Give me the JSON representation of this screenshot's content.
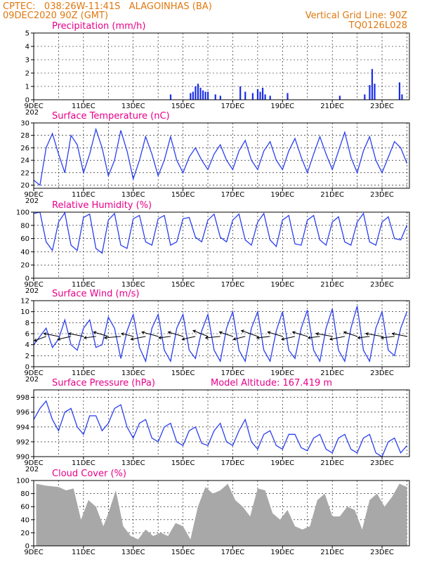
{
  "header": {
    "line1_left": "CPTEC:   038:26W-11:41S   ALAGOINHAS (BA)",
    "line2_left": "09DEC2020 90Z (GMT)",
    "line1_right": "Vertical Grid Line: 90Z",
    "line2_right": "TQ0126L028"
  },
  "x_axis": {
    "start_day": 9,
    "end_day": 24.1,
    "tick_labels": [
      "9DEC",
      "11DEC",
      "13DEC",
      "15DEC",
      "17DEC",
      "19DEC",
      "21DEC",
      "23DEC"
    ],
    "tick_days": [
      9,
      11,
      13,
      15,
      17,
      19,
      21,
      23
    ],
    "clipped_year_label": "202"
  },
  "colors": {
    "line": "#2a3ff0",
    "bar": "#1a2ee8",
    "cloud": "#a8a8a8",
    "header": "#e07810",
    "title": "#e8008a"
  },
  "chart_data": [
    {
      "id": "precip",
      "type": "bar",
      "title": "Precipitation (mm/h)",
      "ylim": [
        0,
        5
      ],
      "yticks": [
        0,
        1,
        2,
        3,
        4,
        5
      ],
      "x": [
        14.5,
        15.3,
        15.4,
        15.5,
        15.6,
        15.7,
        15.8,
        15.9,
        16.0,
        16.3,
        16.5,
        17.3,
        17.5,
        17.8,
        18.0,
        18.1,
        18.2,
        18.3,
        18.5,
        19.2,
        21.3,
        22.3,
        22.5,
        22.6,
        22.7,
        23.7,
        23.8
      ],
      "values": [
        0.4,
        0.5,
        0.6,
        1.0,
        1.2,
        0.9,
        0.7,
        0.6,
        0.6,
        0.4,
        0.3,
        1.0,
        0.6,
        0.5,
        0.8,
        0.6,
        0.9,
        0.4,
        0.3,
        0.5,
        0.3,
        0.4,
        1.1,
        2.3,
        1.2,
        1.3,
        0.4
      ]
    },
    {
      "id": "temp",
      "type": "line",
      "title": "Surface Temperature (nC)",
      "ylim": [
        19.5,
        30
      ],
      "yticks": [
        20,
        22,
        24,
        26,
        28,
        30
      ],
      "x": [
        9.0,
        9.25,
        9.5,
        9.75,
        10.0,
        10.25,
        10.5,
        10.75,
        11.0,
        11.25,
        11.5,
        11.75,
        12.0,
        12.25,
        12.5,
        12.75,
        13.0,
        13.25,
        13.5,
        13.75,
        14.0,
        14.25,
        14.5,
        14.75,
        15.0,
        15.25,
        15.5,
        15.75,
        16.0,
        16.25,
        16.5,
        16.75,
        17.0,
        17.25,
        17.5,
        17.75,
        18.0,
        18.25,
        18.5,
        18.75,
        19.0,
        19.25,
        19.5,
        19.75,
        20.0,
        20.25,
        20.5,
        20.75,
        21.0,
        21.25,
        21.5,
        21.75,
        22.0,
        22.25,
        22.5,
        22.75,
        23.0,
        23.25,
        23.5,
        23.75,
        24.0
      ],
      "values": [
        20.8,
        20.0,
        26.0,
        28.3,
        25.0,
        22.0,
        28.0,
        26.5,
        22.0,
        25.0,
        29.0,
        26.0,
        21.5,
        24.0,
        28.8,
        25.5,
        21.0,
        24.0,
        27.8,
        25.0,
        21.5,
        24.0,
        27.8,
        24.0,
        22.0,
        24.5,
        26.0,
        24.0,
        22.5,
        25.0,
        26.5,
        24.0,
        22.5,
        25.5,
        27.2,
        24.0,
        22.5,
        25.5,
        27.0,
        24.0,
        22.5,
        25.5,
        27.5,
        24.5,
        22.0,
        25.0,
        27.8,
        25.0,
        22.5,
        25.5,
        28.5,
        24.5,
        22.0,
        25.5,
        27.8,
        24.0,
        22.0,
        24.5,
        27.0,
        26.0,
        23.5
      ]
    },
    {
      "id": "rh",
      "type": "line",
      "title": "Relative Humidity (%)",
      "ylim": [
        0,
        100
      ],
      "yticks": [
        0,
        20,
        40,
        60,
        80,
        100
      ],
      "x": [
        9.0,
        9.25,
        9.5,
        9.75,
        10.0,
        10.25,
        10.5,
        10.75,
        11.0,
        11.25,
        11.5,
        11.75,
        12.0,
        12.25,
        12.5,
        12.75,
        13.0,
        13.25,
        13.5,
        13.75,
        14.0,
        14.25,
        14.5,
        14.75,
        15.0,
        15.25,
        15.5,
        15.75,
        16.0,
        16.25,
        16.5,
        16.75,
        17.0,
        17.25,
        17.5,
        17.75,
        18.0,
        18.25,
        18.5,
        18.75,
        19.0,
        19.25,
        19.5,
        19.75,
        20.0,
        20.25,
        20.5,
        20.75,
        21.0,
        21.25,
        21.5,
        21.75,
        22.0,
        22.25,
        22.5,
        22.75,
        23.0,
        23.25,
        23.5,
        23.75,
        24.0
      ],
      "values": [
        98,
        100,
        55,
        42,
        85,
        99,
        50,
        42,
        92,
        97,
        45,
        38,
        88,
        98,
        50,
        45,
        90,
        95,
        55,
        50,
        90,
        95,
        50,
        55,
        90,
        92,
        62,
        55,
        88,
        97,
        62,
        55,
        88,
        97,
        58,
        50,
        85,
        98,
        58,
        48,
        88,
        95,
        52,
        50,
        88,
        95,
        58,
        50,
        85,
        93,
        55,
        50,
        85,
        98,
        55,
        50,
        85,
        93,
        60,
        58,
        80
      ]
    },
    {
      "id": "wind",
      "type": "line",
      "title": "Surface Wind (m/s)",
      "ylim": [
        0,
        12
      ],
      "yticks": [
        0,
        2,
        4,
        6,
        8,
        10,
        12
      ],
      "x": [
        9.0,
        9.25,
        9.5,
        9.75,
        10.0,
        10.25,
        10.5,
        10.75,
        11.0,
        11.25,
        11.5,
        11.75,
        12.0,
        12.25,
        12.5,
        12.75,
        13.0,
        13.25,
        13.5,
        13.75,
        14.0,
        14.25,
        14.5,
        14.75,
        15.0,
        15.25,
        15.5,
        15.75,
        16.0,
        16.25,
        16.5,
        16.75,
        17.0,
        17.25,
        17.5,
        17.75,
        18.0,
        18.25,
        18.5,
        18.75,
        19.0,
        19.25,
        19.5,
        19.75,
        20.0,
        20.25,
        20.5,
        20.75,
        21.0,
        21.25,
        21.5,
        21.75,
        22.0,
        22.25,
        22.5,
        22.75,
        23.0,
        23.25,
        23.5,
        23.75,
        24.0
      ],
      "values": [
        4.0,
        5.5,
        7.0,
        3.5,
        5.0,
        8.5,
        4.0,
        3.0,
        7.0,
        8.5,
        3.5,
        4.0,
        9.0,
        7.0,
        1.5,
        6.5,
        9.5,
        3.5,
        1.0,
        7.0,
        9.5,
        3.0,
        1.0,
        7.0,
        9.5,
        3.0,
        1.5,
        6.5,
        9.5,
        3.0,
        1.0,
        7.0,
        10.0,
        3.0,
        1.0,
        7.0,
        10.0,
        3.0,
        1.0,
        6.5,
        10.0,
        3.0,
        1.5,
        7.0,
        10.3,
        3.0,
        1.0,
        7.0,
        10.5,
        3.0,
        1.0,
        7.0,
        11.0,
        3.0,
        1.0,
        7.0,
        10.0,
        3.0,
        2.0,
        7.0,
        10.0
      ],
      "vectors": {
        "days": [
          9.5,
          10.0,
          10.5,
          11.0,
          11.5,
          12.0,
          12.5,
          13.0,
          13.5,
          14.0,
          14.5,
          15.0,
          15.5,
          16.0,
          16.5,
          17.0,
          17.5,
          18.0,
          18.5,
          19.0,
          19.5,
          20.0,
          20.5,
          21.0,
          21.5,
          22.0,
          22.5,
          23.0,
          23.5,
          24.0
        ],
        "u": [
          -4,
          -5,
          -4.5,
          -5,
          -4,
          -5,
          -5.5,
          -4,
          -5,
          -5.5,
          -4,
          -5,
          -4.5,
          -5,
          -5,
          -4.5,
          -4,
          -5.5,
          -4.5,
          -5,
          -4.5,
          -5,
          -4,
          -5.5,
          -5,
          -4.5,
          -4,
          -5.5,
          -4.5,
          -5
        ],
        "v": [
          -1.5,
          1,
          -1,
          1,
          -0.5,
          1.5,
          -0.5,
          1,
          -1,
          1.5,
          -0.5,
          1.5,
          -1,
          2,
          -0.5,
          1.5,
          -1,
          2,
          -0.5,
          1.5,
          -1,
          1.5,
          -0.5,
          1,
          -1,
          1.5,
          -0.5,
          1,
          -0.5,
          1
        ]
      }
    },
    {
      "id": "pres",
      "type": "line",
      "title": "Surface Pressure (hPa)",
      "extra_label": "Model Altitude: 167.419 m",
      "ylim": [
        990,
        999
      ],
      "yticks": [
        990,
        992,
        994,
        996,
        998
      ],
      "x": [
        9.0,
        9.25,
        9.5,
        9.75,
        10.0,
        10.25,
        10.5,
        10.75,
        11.0,
        11.25,
        11.5,
        11.75,
        12.0,
        12.25,
        12.5,
        12.75,
        13.0,
        13.25,
        13.5,
        13.75,
        14.0,
        14.25,
        14.5,
        14.75,
        15.0,
        15.25,
        15.5,
        15.75,
        16.0,
        16.25,
        16.5,
        16.75,
        17.0,
        17.25,
        17.5,
        17.75,
        18.0,
        18.25,
        18.5,
        18.75,
        19.0,
        19.25,
        19.5,
        19.75,
        20.0,
        20.25,
        20.5,
        20.75,
        21.0,
        21.25,
        21.5,
        21.75,
        22.0,
        22.25,
        22.5,
        22.75,
        23.0,
        23.25,
        23.5,
        23.75,
        24.0
      ],
      "values": [
        995.0,
        996.5,
        997.5,
        995.0,
        993.5,
        996.0,
        996.5,
        994.0,
        993.0,
        995.5,
        995.5,
        993.5,
        994.5,
        996.5,
        997.0,
        994.0,
        992.5,
        994.5,
        995.0,
        992.5,
        992.0,
        994.0,
        994.5,
        992.0,
        991.5,
        993.5,
        994.0,
        991.8,
        991.5,
        993.5,
        994.5,
        992.0,
        991.5,
        993.5,
        995.0,
        992.0,
        991.0,
        993.0,
        993.5,
        991.5,
        991.0,
        993.0,
        993.0,
        991.2,
        990.8,
        992.5,
        993.0,
        991.0,
        990.5,
        992.5,
        993.0,
        991.0,
        990.5,
        992.5,
        993.0,
        990.5,
        990.0,
        992.0,
        992.5,
        990.5,
        991.5
      ]
    },
    {
      "id": "cloud",
      "type": "area",
      "title": "Cloud Cover (%)",
      "ylim": [
        0,
        100
      ],
      "yticks": [
        0,
        20,
        40,
        60,
        80,
        100
      ],
      "x": [
        9.1,
        9.5,
        10.0,
        10.3,
        10.6,
        10.9,
        11.2,
        11.5,
        11.8,
        12.0,
        12.3,
        12.6,
        12.9,
        13.2,
        13.5,
        13.8,
        14.1,
        14.4,
        14.7,
        15.0,
        15.3,
        15.6,
        15.9,
        16.2,
        16.5,
        16.8,
        17.1,
        17.4,
        17.7,
        18.0,
        18.3,
        18.6,
        18.9,
        19.2,
        19.5,
        19.8,
        20.1,
        20.4,
        20.7,
        21.0,
        21.3,
        21.6,
        21.9,
        22.2,
        22.5,
        22.8,
        23.1,
        23.4,
        23.7,
        24.0
      ],
      "values": [
        95,
        92,
        90,
        85,
        88,
        40,
        70,
        60,
        30,
        50,
        85,
        30,
        15,
        10,
        25,
        15,
        20,
        15,
        35,
        30,
        10,
        60,
        90,
        80,
        85,
        95,
        70,
        60,
        45,
        88,
        85,
        50,
        40,
        55,
        30,
        25,
        30,
        70,
        80,
        45,
        45,
        60,
        55,
        25,
        70,
        80,
        60,
        75,
        95,
        90
      ]
    }
  ]
}
